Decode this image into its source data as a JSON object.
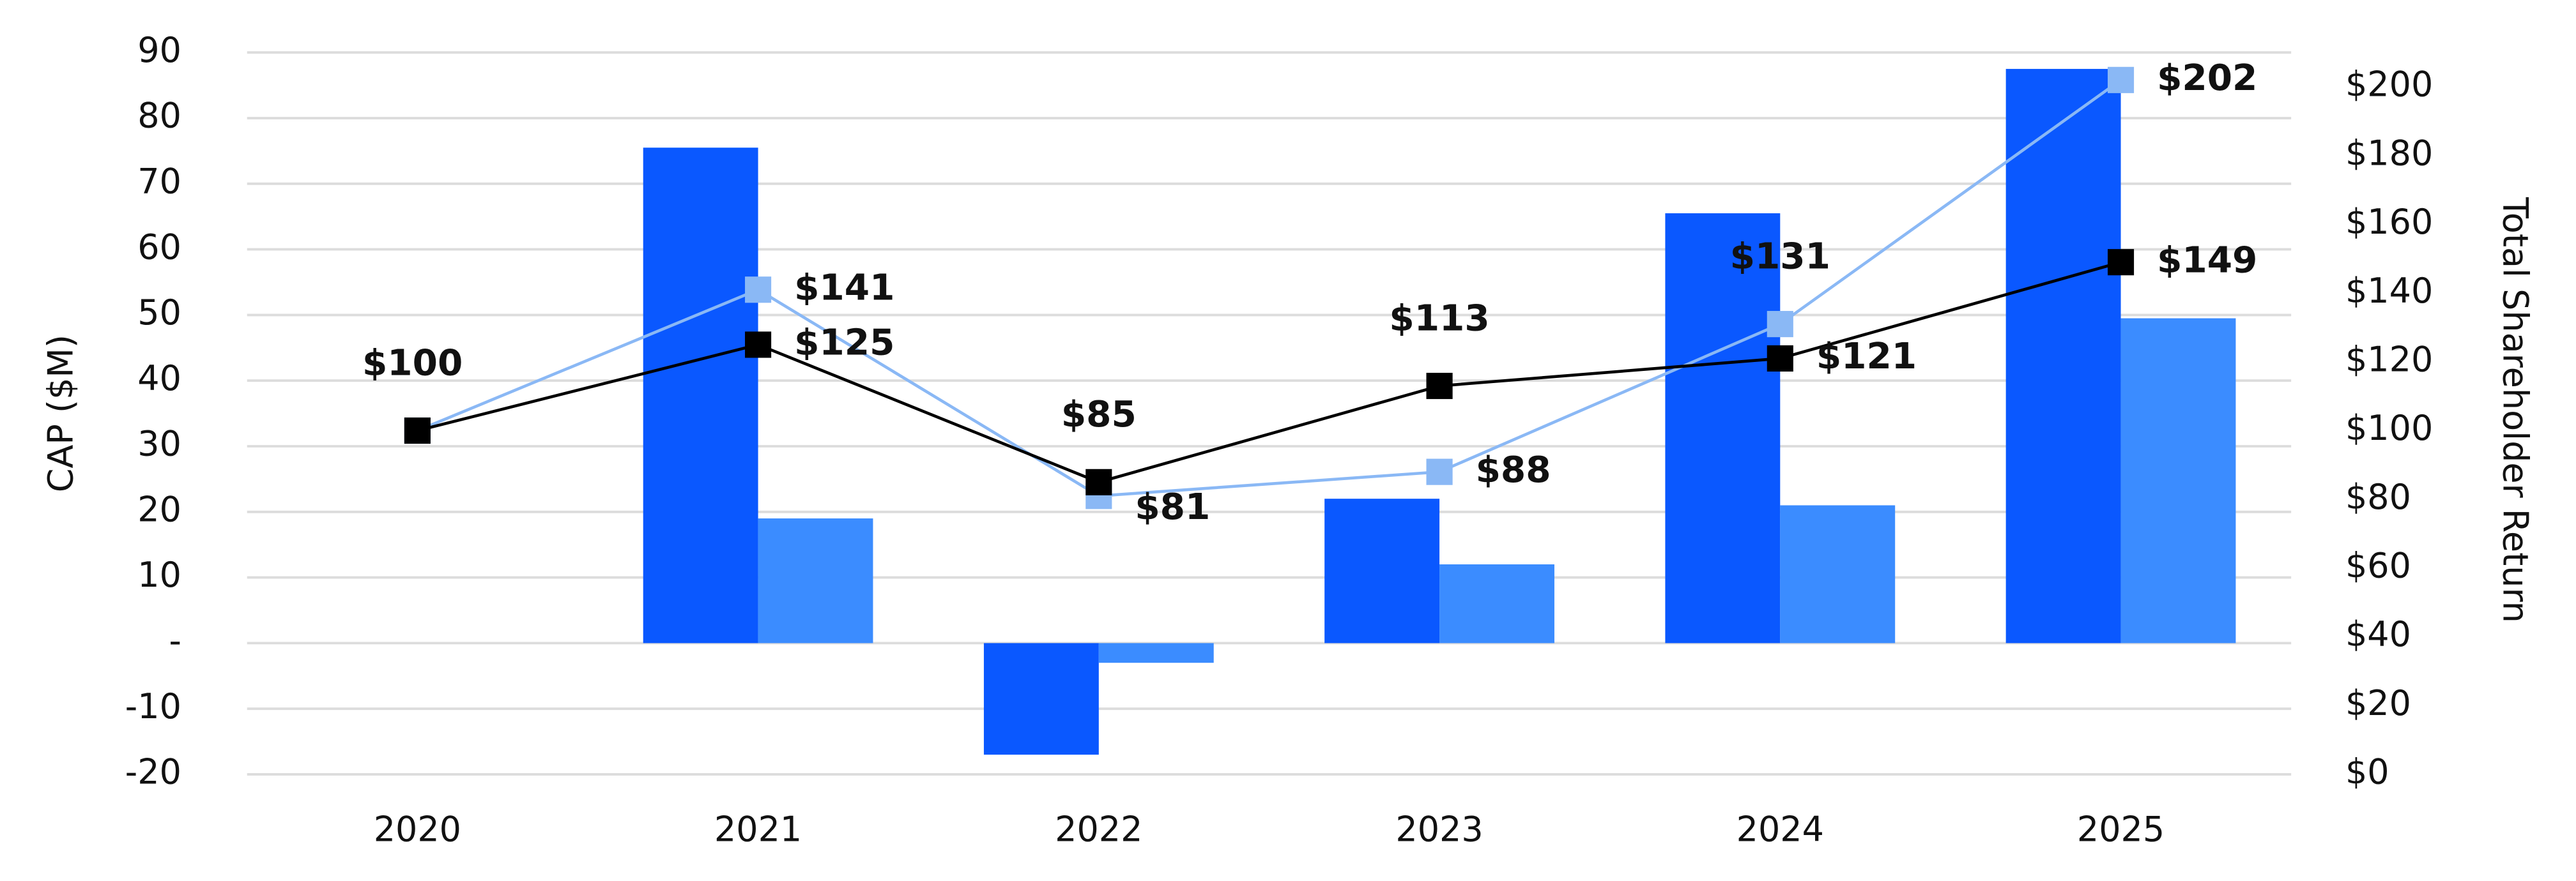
{
  "chart_data": {
    "type": "bar",
    "categories": [
      "2020",
      "2021",
      "2022",
      "2023",
      "2024",
      "2025"
    ],
    "y_label": "CAP ($M)",
    "y2_label": "Total Shareholder Return",
    "ylim": [
      -20,
      90
    ],
    "yticks": [
      -20,
      -10,
      {
        "value": 0,
        "label": "-"
      },
      10,
      20,
      30,
      40,
      50,
      60,
      70,
      80,
      90
    ],
    "y2lim": [
      0,
      210
    ],
    "y2ticks": [
      {
        "value": 0,
        "label": "$0"
      },
      {
        "value": 20,
        "label": "$20"
      },
      {
        "value": 40,
        "label": "$40"
      },
      {
        "value": 60,
        "label": "$60"
      },
      {
        "value": 80,
        "label": "$80"
      },
      {
        "value": 100,
        "label": "$100"
      },
      {
        "value": 120,
        "label": "$120"
      },
      {
        "value": 140,
        "label": "$140"
      },
      {
        "value": 160,
        "label": "$160"
      },
      {
        "value": 180,
        "label": "$180"
      },
      {
        "value": 200,
        "label": "$200"
      }
    ],
    "grid": true,
    "series": [
      {
        "type": "bar",
        "color": "#0a58ff",
        "values": [
          null,
          75.5,
          -17,
          22,
          65.5,
          87.5
        ]
      },
      {
        "type": "bar",
        "color": "#3b8cff",
        "values": [
          null,
          19,
          -3,
          12,
          21,
          49.5
        ]
      },
      {
        "type": "line",
        "axis": "y2",
        "color": "#8ab8f5",
        "values": [
          100,
          141,
          81,
          88,
          131,
          202
        ],
        "value_labels": [
          null,
          "$141",
          "$81",
          "$88",
          "$131",
          "$202"
        ]
      },
      {
        "type": "line",
        "axis": "y2",
        "color": "#000000",
        "values": [
          100,
          125,
          85,
          113,
          121,
          149
        ],
        "value_labels": [
          "$100",
          "$125",
          "$85",
          "$113",
          "$121",
          "$149"
        ]
      }
    ]
  }
}
